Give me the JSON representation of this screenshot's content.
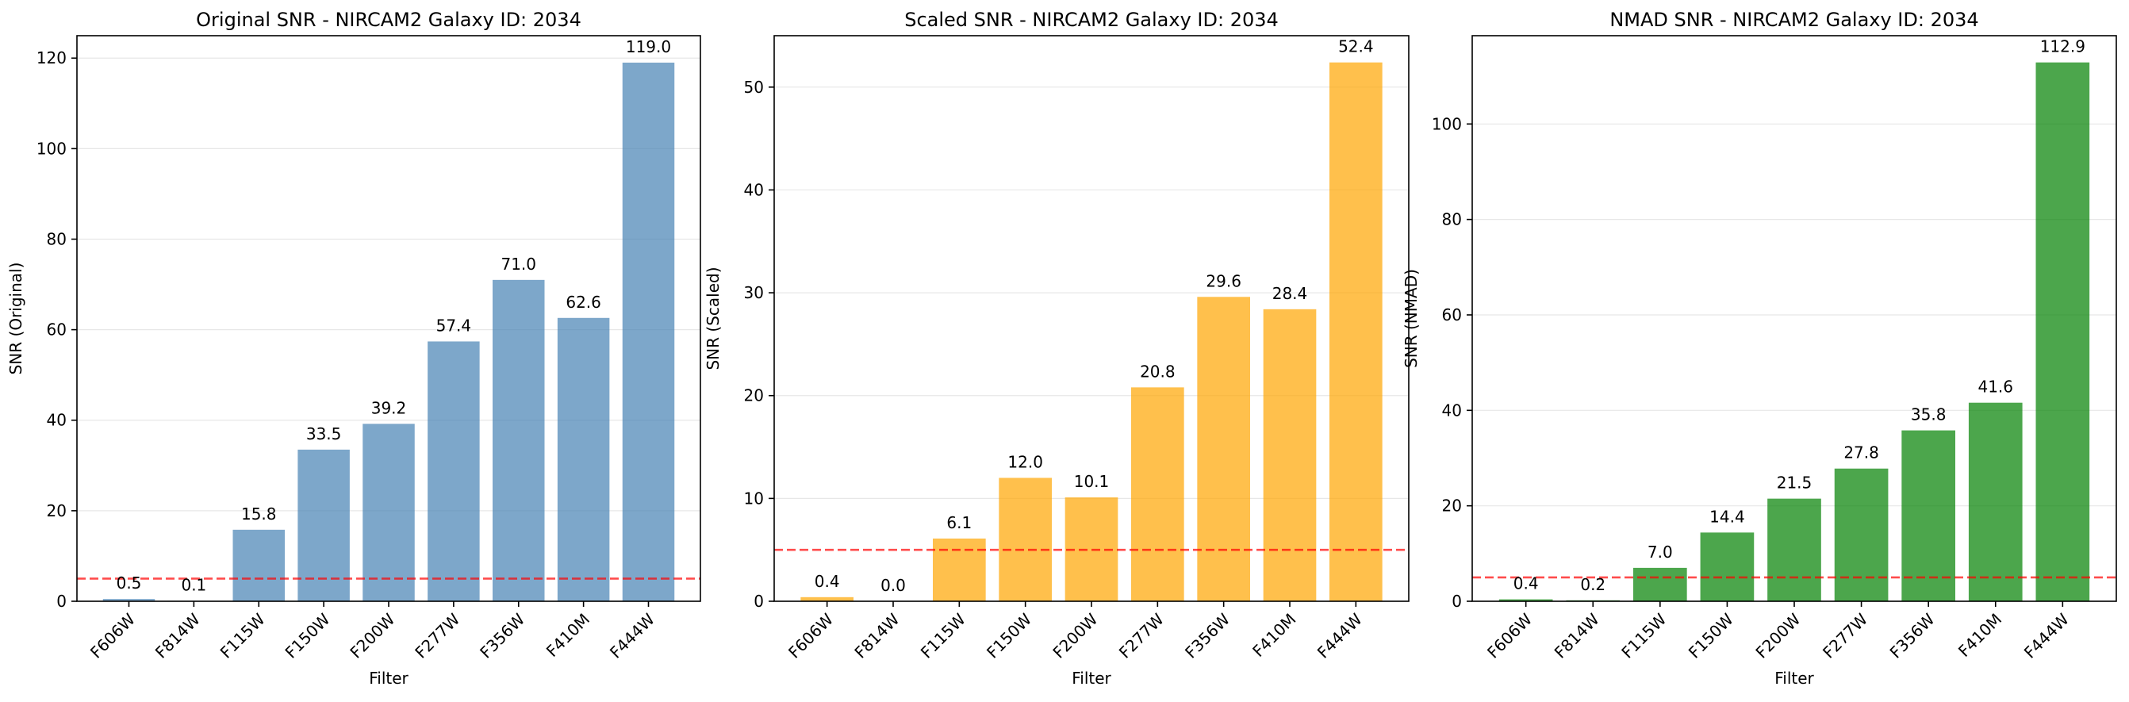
{
  "chart_data": [
    {
      "type": "bar",
      "title": "Original SNR - NIRCAM2 Galaxy ID: 2034",
      "xlabel": "Filter",
      "ylabel": "SNR (Original)",
      "categories": [
        "F606W",
        "F814W",
        "F115W",
        "F150W",
        "F200W",
        "F277W",
        "F356W",
        "F410M",
        "F444W"
      ],
      "values": [
        0.5,
        0.1,
        15.8,
        33.5,
        39.2,
        57.4,
        71.0,
        62.6,
        119.0
      ],
      "value_labels": [
        "0.5",
        "0.1",
        "15.8",
        "33.5",
        "39.2",
        "57.4",
        "71.0",
        "62.6",
        "119.0"
      ],
      "ylim": [
        0,
        124.95
      ],
      "yticks": [
        0,
        20,
        40,
        60,
        80,
        100,
        120
      ],
      "threshold": 5,
      "bar_color": "#4682b4",
      "threshold_color": "#ff0000",
      "grid": "y"
    },
    {
      "type": "bar",
      "title": "Scaled SNR - NIRCAM2 Galaxy ID: 2034",
      "xlabel": "Filter",
      "ylabel": "SNR (Scaled)",
      "categories": [
        "F606W",
        "F814W",
        "F115W",
        "F150W",
        "F200W",
        "F277W",
        "F356W",
        "F410M",
        "F444W"
      ],
      "values": [
        0.4,
        0.0,
        6.1,
        12.0,
        10.1,
        20.8,
        29.6,
        28.4,
        52.4
      ],
      "value_labels": [
        "0.4",
        "0.0",
        "6.1",
        "12.0",
        "10.1",
        "20.8",
        "29.6",
        "28.4",
        "52.4"
      ],
      "ylim": [
        0,
        55.0
      ],
      "yticks": [
        0,
        10,
        20,
        30,
        40,
        50
      ],
      "threshold": 5,
      "bar_color": "#ffa500",
      "threshold_color": "#ff0000",
      "grid": "y"
    },
    {
      "type": "bar",
      "title": "NMAD SNR - NIRCAM2 Galaxy ID: 2034",
      "xlabel": "Filter",
      "ylabel": "SNR (NMAD)",
      "categories": [
        "F606W",
        "F814W",
        "F115W",
        "F150W",
        "F200W",
        "F277W",
        "F356W",
        "F410M",
        "F444W"
      ],
      "values": [
        0.4,
        0.2,
        7.0,
        14.4,
        21.5,
        27.8,
        35.8,
        41.6,
        112.9
      ],
      "value_labels": [
        "0.4",
        "0.2",
        "7.0",
        "14.4",
        "21.5",
        "27.8",
        "35.8",
        "41.6",
        "112.9"
      ],
      "ylim": [
        0,
        118.5
      ],
      "yticks": [
        0,
        20,
        40,
        60,
        80,
        100
      ],
      "threshold": 5,
      "bar_color": "#008000",
      "threshold_color": "#ff0000",
      "grid": "y"
    }
  ]
}
